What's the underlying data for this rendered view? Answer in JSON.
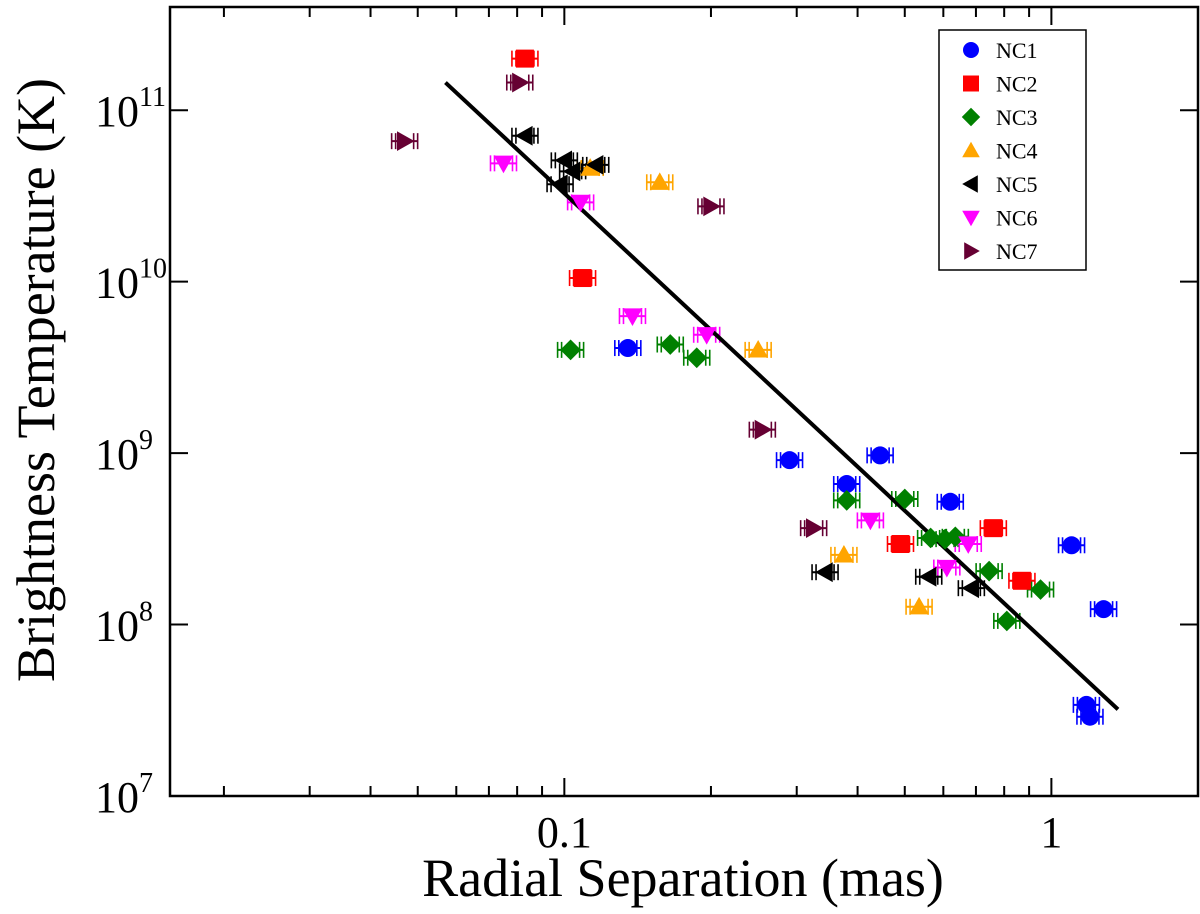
{
  "chart_data": {
    "type": "scatter",
    "xlabel": "Radial Separation (mas)",
    "ylabel": "Brightness Temperature (K)",
    "xscale": "log",
    "yscale": "log",
    "xlim": [
      0.0155,
      2.0
    ],
    "ylim": [
      10000000.0,
      400000000000.0
    ],
    "x_ticks": [
      {
        "value": 0.1,
        "label": "0.1"
      },
      {
        "value": 1,
        "label": "1"
      }
    ],
    "y_ticks": [
      {
        "value": 10000000.0,
        "base": "10",
        "exp": "7"
      },
      {
        "value": 100000000.0,
        "base": "10",
        "exp": "8"
      },
      {
        "value": 1000000000.0,
        "base": "10",
        "exp": "9"
      },
      {
        "value": 10000000000.0,
        "base": "10",
        "exp": "10"
      },
      {
        "value": 100000000000.0,
        "base": "10",
        "exp": "11"
      }
    ],
    "legend_position": "top-right",
    "grid": false,
    "series": [
      {
        "name": "NC1",
        "marker": "circle",
        "color": "#0000ff",
        "points": [
          [
            0.135,
            4100000000.0
          ],
          [
            0.29,
            910000000.0
          ],
          [
            0.38,
            660000000.0
          ],
          [
            0.445,
            970000000.0
          ],
          [
            0.62,
            520000000.0
          ],
          [
            1.1,
            290000000.0
          ],
          [
            1.28,
            123000000.0
          ],
          [
            1.18,
            34000000.0
          ],
          [
            1.2,
            29000000.0
          ]
        ]
      },
      {
        "name": "NC2",
        "marker": "square",
        "color": "#ff0000",
        "points": [
          [
            0.083,
            200000000000.0
          ],
          [
            0.109,
            10500000000.0
          ],
          [
            0.49,
            295000000.0
          ],
          [
            0.76,
            365000000.0
          ],
          [
            0.87,
            180000000.0
          ]
        ]
      },
      {
        "name": "NC3",
        "marker": "diamond",
        "color": "#008000",
        "points": [
          [
            0.103,
            4000000000.0
          ],
          [
            0.165,
            4300000000.0
          ],
          [
            0.187,
            3600000000.0
          ],
          [
            0.38,
            530000000.0
          ],
          [
            0.5,
            540000000.0
          ],
          [
            0.565,
            320000000.0
          ],
          [
            0.605,
            315000000.0
          ],
          [
            0.635,
            325000000.0
          ],
          [
            0.745,
            205000000.0
          ],
          [
            0.81,
            105000000.0
          ],
          [
            0.95,
            160000000.0
          ]
        ]
      },
      {
        "name": "NC4",
        "marker": "triangle-up",
        "color": "#ffa500",
        "points": [
          [
            0.113,
            46000000000.0
          ],
          [
            0.157,
            38000000000.0
          ],
          [
            0.25,
            4000000000.0
          ],
          [
            0.375,
            255000000.0
          ],
          [
            0.535,
            127000000.0
          ]
        ]
      },
      {
        "name": "NC5",
        "marker": "triangle-left",
        "color": "#000000",
        "points": [
          [
            0.083,
            71000000000.0
          ],
          [
            0.1,
            51000000000.0
          ],
          [
            0.104,
            44000000000.0
          ],
          [
            0.098,
            37000000000.0
          ],
          [
            0.116,
            48000000000.0
          ],
          [
            0.343,
            202000000.0
          ],
          [
            0.56,
            190000000.0
          ],
          [
            0.685,
            163000000.0
          ]
        ]
      },
      {
        "name": "NC6",
        "marker": "triangle-down",
        "color": "#ff00ff",
        "points": [
          [
            0.075,
            49000000000.0
          ],
          [
            0.108,
            29000000000.0
          ],
          [
            0.138,
            6300000000.0
          ],
          [
            0.196,
            4900000000.0
          ],
          [
            0.425,
            405000000.0
          ],
          [
            0.61,
            215000000.0
          ],
          [
            0.675,
            295000000.0
          ]
        ]
      },
      {
        "name": "NC7",
        "marker": "triangle-right",
        "color": "#660033",
        "points": [
          [
            0.047,
            66000000000.0
          ],
          [
            0.081,
            145000000000.0
          ],
          [
            0.2,
            27500000000.0
          ],
          [
            0.255,
            1370000000.0
          ],
          [
            0.325,
            365000000.0
          ]
        ]
      }
    ],
    "fit_line": {
      "x": [
        0.057,
        1.37
      ],
      "y": [
        145000000000.0,
        32000000.0
      ]
    }
  }
}
